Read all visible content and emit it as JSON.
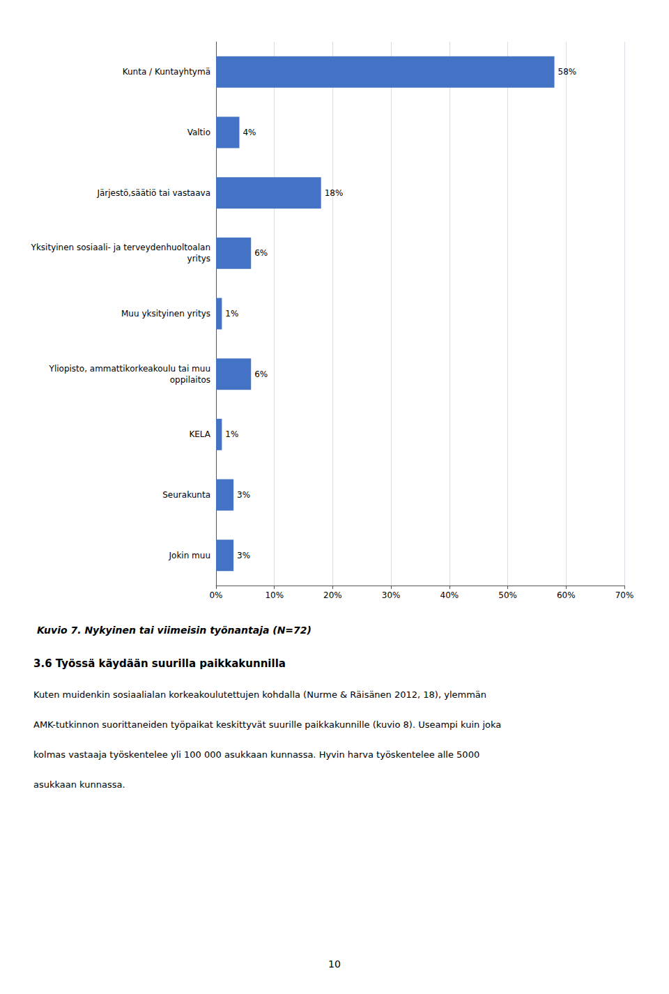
{
  "chart_data": {
    "type": "bar",
    "orientation": "horizontal",
    "title": "Kuvio 7. Nykyinen tai viimeisin työnantaja (N=72)",
    "subtitle": "3.6 Työssä käydään suurilla paikkakunnilla",
    "categories": [
      "Kunta / Kuntayhtymä",
      "Valtio",
      "Järjestö,säätiö tai vastaava",
      "Yksityinen sosiaali- ja terveydenhuoltoalan\nyritys",
      "Muu yksityinen yritys",
      "Yliopisto, ammattikorkeakoulu tai muu\noppilaitos",
      "KELA",
      "Seurakunta",
      "Jokin muu"
    ],
    "values": [
      58,
      4,
      18,
      6,
      1,
      6,
      1,
      3,
      3
    ],
    "value_labels": [
      "58%",
      "4%",
      "18%",
      "6%",
      "1%",
      "6%",
      "1%",
      "3%",
      "3%"
    ],
    "data_labels": true,
    "color": "#4472C4",
    "xlim": [
      0,
      70
    ],
    "xticks": [
      {
        "value": 0,
        "label": "0%"
      },
      {
        "value": 10,
        "label": "10%"
      },
      {
        "value": 20,
        "label": "20%"
      },
      {
        "value": 30,
        "label": "30%"
      },
      {
        "value": 40,
        "label": "40%"
      },
      {
        "value": 50,
        "label": "50%"
      },
      {
        "value": 60,
        "label": "60%"
      },
      {
        "value": 70,
        "label": "70%"
      }
    ],
    "grid": true,
    "annotations": [
      "Kuten muidenkin sosiaalialan korkeakoulutettujen kohdalla (Nurme & Räisänen 2012, 18), ylemmän",
      "AMK-tutkinnon suorittaneiden työpaikat keskittyvät suurille paikkakunnille (kuvio 8). Useampi kuin joka",
      "kolmas vastaaja työskentelee yli 100 000 asukkaan kunnassa. Hyvin harva työskentelee alle 5000",
      "asukkaan kunnassa.",
      "10"
    ]
  }
}
